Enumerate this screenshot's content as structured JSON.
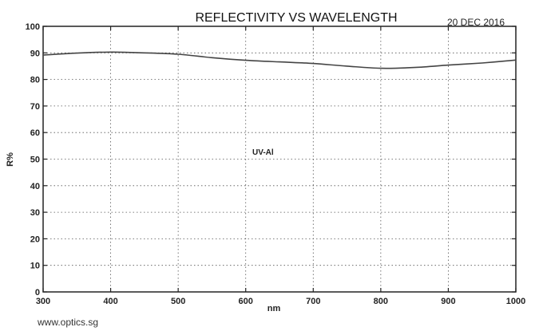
{
  "chart_data": {
    "type": "line",
    "title": "REFLECTIVITY VS WAVELENGTH",
    "date": "20 DEC 2016",
    "xlabel": "nm",
    "ylabel": "R%",
    "xlim": [
      300,
      1000
    ],
    "ylim": [
      0,
      100
    ],
    "x_ticks": [
      300,
      400,
      500,
      600,
      700,
      800,
      900,
      1000
    ],
    "y_ticks": [
      0,
      10,
      20,
      30,
      40,
      50,
      60,
      70,
      80,
      90,
      100
    ],
    "grid": true,
    "series": [
      {
        "name": "UV-Al",
        "x": [
          300,
          350,
          400,
          450,
          500,
          550,
          600,
          650,
          700,
          750,
          800,
          850,
          900,
          950,
          1000
        ],
        "y": [
          89.2,
          89.9,
          90.3,
          90.0,
          89.5,
          88.2,
          87.2,
          86.6,
          86.0,
          85.0,
          84.2,
          84.5,
          85.4,
          86.2,
          87.3
        ]
      }
    ]
  },
  "footer": "www.optics.sg"
}
